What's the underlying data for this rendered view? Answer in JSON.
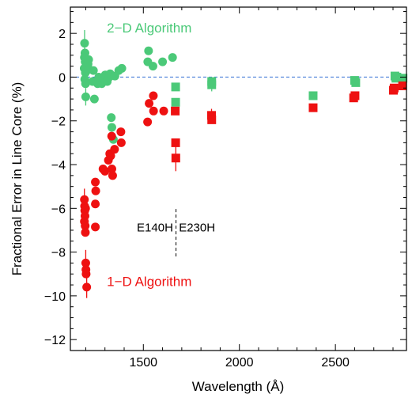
{
  "chart_data": {
    "type": "scatter",
    "xlabel": "Wavelength (Å)",
    "ylabel": "Fractional Error in Line Core (%)",
    "xlim": [
      1120,
      2870
    ],
    "ylim": [
      -12.5,
      3.2
    ],
    "x_ticks": [
      1500,
      2000,
      2500
    ],
    "y_ticks": [
      2,
      0,
      -2,
      -4,
      -6,
      -8,
      -10,
      -12
    ],
    "x_tick_labels": [
      "1500",
      "2000",
      "2500"
    ],
    "y_tick_labels": [
      "2",
      "0",
      "−2",
      "−4",
      "−6",
      "−8",
      "−10",
      "−12"
    ],
    "grid": false,
    "reference_line": {
      "y": 0,
      "color": "#4a7fd8",
      "style": "dashed"
    },
    "divider": {
      "x": 1670,
      "y_range": [
        -8.2,
        -6.0
      ]
    },
    "annotations": [
      {
        "id": "label-2d",
        "text": "2−D Algorithm",
        "color": "#4bc978"
      },
      {
        "id": "label-1d",
        "text": "1−D Algorithm",
        "color": "#ee1111"
      },
      {
        "id": "label-e140h",
        "text": "E140H",
        "color": "#000000"
      },
      {
        "id": "label-e230h",
        "text": "E230H",
        "color": "#000000"
      }
    ],
    "series": [
      {
        "color": "#4bc978",
        "marker": "circle",
        "points": [
          [
            1194,
            1.55,
            0.6
          ],
          [
            1196,
            1.1,
            0
          ],
          [
            1193,
            0.9,
            0
          ],
          [
            1197,
            0.7,
            0
          ],
          [
            1192,
            0.4,
            0
          ],
          [
            1198,
            0.2,
            0
          ],
          [
            1195,
            -0.1,
            0
          ],
          [
            1199,
            -0.3,
            0
          ],
          [
            1200,
            -0.9,
            0.4
          ],
          [
            1212,
            0.6,
            0
          ],
          [
            1215,
            0.8,
            0
          ],
          [
            1218,
            0.35,
            0
          ],
          [
            1236,
            -0.2,
            0
          ],
          [
            1240,
            0.3,
            0
          ],
          [
            1245,
            -1.0,
            0
          ],
          [
            1262,
            -0.3,
            0
          ],
          [
            1268,
            0.0,
            0
          ],
          [
            1275,
            -0.15,
            0
          ],
          [
            1283,
            -0.3,
            0
          ],
          [
            1296,
            -0.1,
            0
          ],
          [
            1302,
            0.1,
            0
          ],
          [
            1312,
            -0.2,
            0
          ],
          [
            1322,
            0.0,
            0
          ],
          [
            1327,
            0.15,
            0
          ],
          [
            1333,
            -1.85,
            0
          ],
          [
            1336,
            -2.3,
            0
          ],
          [
            1344,
            -2.85,
            0
          ],
          [
            1352,
            0.05,
            0
          ],
          [
            1372,
            0.3,
            0
          ],
          [
            1388,
            0.4,
            0
          ],
          [
            1523,
            0.7,
            0
          ],
          [
            1527,
            1.2,
            0
          ],
          [
            1550,
            0.5,
            0
          ],
          [
            1600,
            0.7,
            0
          ],
          [
            1652,
            0.9,
            0
          ]
        ]
      },
      {
        "color": "#4bc978",
        "marker": "square",
        "points": [
          [
            1668,
            -0.45,
            0
          ],
          [
            1668,
            -1.15,
            0
          ],
          [
            1856,
            -0.2,
            0
          ],
          [
            1856,
            -0.35,
            0.3
          ],
          [
            2384,
            -0.85,
            0
          ],
          [
            2600,
            -0.15,
            0
          ],
          [
            2606,
            -0.25,
            0
          ],
          [
            2810,
            0.05,
            0
          ],
          [
            2815,
            -0.05,
            0
          ],
          [
            2820,
            0.0,
            0
          ],
          [
            2852,
            -0.05,
            0
          ]
        ]
      },
      {
        "color": "#ee1111",
        "marker": "circle",
        "points": [
          [
            1193,
            -5.6,
            0.5
          ],
          [
            1194,
            -5.9,
            0
          ],
          [
            1195,
            -6.1,
            0
          ],
          [
            1196,
            -6.35,
            0
          ],
          [
            1193,
            -6.6,
            0
          ],
          [
            1197,
            -6.8,
            0
          ],
          [
            1198,
            -7.1,
            0
          ],
          [
            1199,
            -6.0,
            0
          ],
          [
            1200,
            -8.5,
            0.6
          ],
          [
            1201,
            -8.8,
            0
          ],
          [
            1202,
            -9.0,
            0
          ],
          [
            1205,
            -9.6,
            0.5
          ],
          [
            1250,
            -4.8,
            0
          ],
          [
            1252,
            -5.2,
            0
          ],
          [
            1250,
            -5.8,
            0
          ],
          [
            1250,
            -6.85,
            0
          ],
          [
            1290,
            -4.2,
            0
          ],
          [
            1300,
            -4.3,
            0
          ],
          [
            1318,
            -3.8,
            0
          ],
          [
            1325,
            -3.5,
            0
          ],
          [
            1330,
            -3.6,
            0
          ],
          [
            1336,
            -4.2,
            0
          ],
          [
            1340,
            -4.5,
            0
          ],
          [
            1335,
            -2.7,
            0
          ],
          [
            1350,
            -3.3,
            0
          ],
          [
            1383,
            -2.5,
            0
          ],
          [
            1385,
            -3.0,
            0
          ],
          [
            1522,
            -2.05,
            0
          ],
          [
            1530,
            -1.2,
            0
          ],
          [
            1552,
            -0.85,
            0
          ],
          [
            1553,
            -1.55,
            0
          ],
          [
            1606,
            -1.55,
            0
          ]
        ]
      },
      {
        "color": "#ee1111",
        "marker": "square",
        "points": [
          [
            1668,
            -3.0,
            0
          ],
          [
            1669,
            -3.7,
            0.6
          ],
          [
            1666,
            -1.55,
            0
          ],
          [
            1855,
            -1.75,
            0.3
          ],
          [
            1856,
            -1.95,
            0
          ],
          [
            2384,
            -1.4,
            0
          ],
          [
            2595,
            -0.95,
            0
          ],
          [
            2602,
            -0.85,
            0
          ],
          [
            2802,
            -0.6,
            0
          ],
          [
            2806,
            -0.5,
            0
          ],
          [
            2850,
            -0.4,
            0
          ]
        ]
      }
    ]
  }
}
